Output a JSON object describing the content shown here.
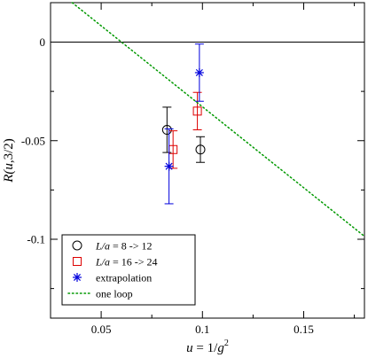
{
  "chart_data": {
    "type": "scatter",
    "title": "",
    "xlabel": {
      "var": "u",
      "eq": " = 1/",
      "sym": "g",
      "sup": "2"
    },
    "ylabel": {
      "pre": "R(",
      "var": "u",
      "post": ",3/2)"
    },
    "xlim": [
      0.025,
      0.18
    ],
    "ylim": [
      -0.14,
      0.02
    ],
    "x_ticks": [
      0.05,
      0.1,
      0.15
    ],
    "x_tick_labels": [
      "0.05",
      "0.1",
      "0.15"
    ],
    "y_ticks": [
      0,
      -0.05,
      -0.1
    ],
    "y_tick_labels": [
      "0",
      "-0.05",
      "-0.1"
    ],
    "grid": false,
    "reference_line_y": 0,
    "legend_position": "bottom-left",
    "series": [
      {
        "label_var": "L/a",
        "label_text": " = 8 -> 12",
        "marker": "circle",
        "color": "#000000",
        "points": [
          {
            "x": 0.0825,
            "y": -0.0445,
            "err": 0.0115
          },
          {
            "x": 0.099,
            "y": -0.0545,
            "err": 0.0065
          }
        ]
      },
      {
        "label_var": "L/a",
        "label_text": " = 16 -> 24",
        "marker": "square",
        "color": "#dd0000",
        "points": [
          {
            "x": 0.0855,
            "y": -0.0545,
            "err": 0.0095
          },
          {
            "x": 0.0975,
            "y": -0.035,
            "err": 0.0095
          }
        ]
      },
      {
        "label_text": "extrapolation",
        "marker": "star",
        "color": "#0000dd",
        "points": [
          {
            "x": 0.0835,
            "y": -0.063,
            "err": 0.019
          },
          {
            "x": 0.0985,
            "y": -0.0155,
            "err": 0.0145
          }
        ]
      },
      {
        "label_text": "one loop",
        "type": "line",
        "style": "dotted",
        "color": "#009900",
        "points": [
          {
            "x": 0.0357,
            "y": 0.02
          },
          {
            "x": 0.18,
            "y": -0.0985
          }
        ]
      }
    ]
  }
}
